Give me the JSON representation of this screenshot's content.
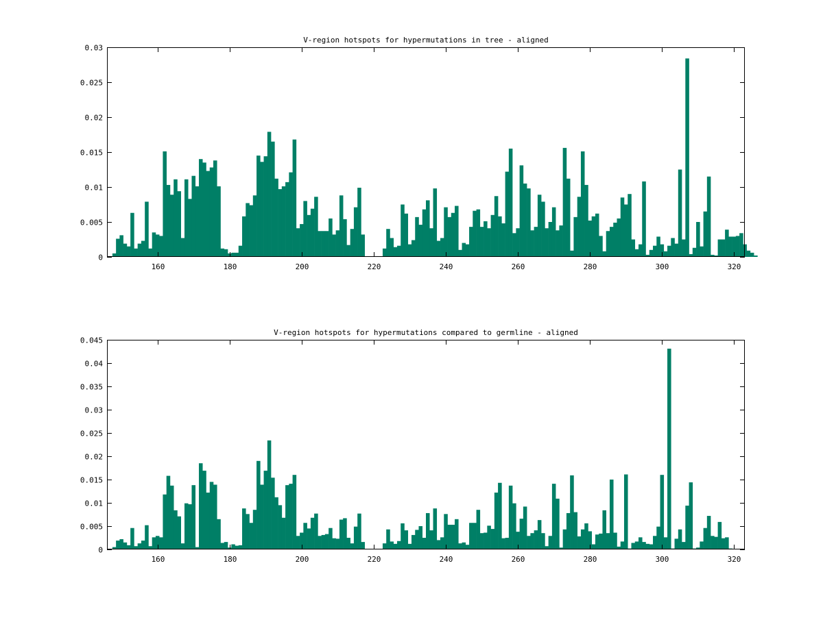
{
  "colors": {
    "bar": "#007f66",
    "axis": "#000000",
    "background": "#ffffff"
  },
  "chart_data": [
    {
      "type": "bar",
      "title": "V-region hotspots for hypermutations in tree - aligned",
      "xlabel": "",
      "ylabel": "",
      "xlim": [
        146,
        323
      ],
      "ylim": [
        0,
        0.03
      ],
      "xticks": [
        160,
        180,
        200,
        220,
        240,
        260,
        280,
        300,
        320
      ],
      "yticks": [
        0,
        0.005,
        0.01,
        0.015,
        0.02,
        0.025,
        0.03
      ],
      "ytick_labels": [
        "0",
        "0.005",
        "0.01",
        "0.015",
        "0.02",
        "0.025",
        "0.03"
      ],
      "x_start": 148,
      "values": [
        0.0005,
        0.0026,
        0.0031,
        0.0019,
        0.0015,
        0.0063,
        0.0012,
        0.0019,
        0.0023,
        0.0079,
        0.0012,
        0.0035,
        0.0032,
        0.003,
        0.0151,
        0.0103,
        0.0089,
        0.0111,
        0.0094,
        0.0027,
        0.0111,
        0.0083,
        0.0116,
        0.0101,
        0.014,
        0.0135,
        0.0123,
        0.0128,
        0.0138,
        0.0101,
        0.0012,
        0.0011,
        0.0005,
        0.0006,
        0.0006,
        0.0016,
        0.0058,
        0.0077,
        0.0074,
        0.0088,
        0.0145,
        0.0136,
        0.0144,
        0.0179,
        0.0165,
        0.0112,
        0.0097,
        0.0101,
        0.0107,
        0.0121,
        0.0168,
        0.0041,
        0.0047,
        0.008,
        0.006,
        0.0069,
        0.0086,
        0.0037,
        0.0037,
        0.0037,
        0.0055,
        0.0032,
        0.0038,
        0.0088,
        0.0054,
        0.0017,
        0.004,
        0.0071,
        0.0099,
        0.0032,
        0,
        0,
        0,
        0,
        0,
        0.0012,
        0.004,
        0.0027,
        0.0014,
        0.0016,
        0.0075,
        0.0062,
        0.0018,
        0.0024,
        0.0057,
        0.0046,
        0.0068,
        0.0081,
        0.0041,
        0.0098,
        0.0023,
        0.0027,
        0.0071,
        0.0057,
        0.0063,
        0.0073,
        0.001,
        0.002,
        0.0018,
        0.0043,
        0.0066,
        0.0068,
        0.0043,
        0.0051,
        0.0041,
        0.006,
        0.0087,
        0.0058,
        0.0048,
        0.0122,
        0.0155,
        0.0034,
        0.0041,
        0.0131,
        0.0105,
        0.0098,
        0.0038,
        0.0043,
        0.0089,
        0.0079,
        0.0041,
        0.005,
        0.0071,
        0.0038,
        0.0045,
        0.0156,
        0.0112,
        0.0009,
        0.0057,
        0.0086,
        0.0151,
        0.0103,
        0.0052,
        0.0058,
        0.0062,
        0.003,
        0.0008,
        0.0037,
        0.0043,
        0.0049,
        0.0055,
        0.0085,
        0.0075,
        0.009,
        0.0025,
        0.0011,
        0.0018,
        0.0108,
        0.0003,
        0.001,
        0.0016,
        0.0029,
        0.0018,
        0.0008,
        0.0016,
        0.0027,
        0.0019,
        0.0125,
        0.0025,
        0.0284,
        0.0004,
        0.0013,
        0.005,
        0.0015,
        0.0065,
        0.0115,
        0.0003,
        0.0002,
        0.0025,
        0.0025,
        0.0039,
        0.0029,
        0.0029,
        0.003,
        0.0034,
        0.0018,
        0.0009,
        0.0006,
        0.0002
      ]
    },
    {
      "type": "bar",
      "title": "V-region hotspots for hypermutations compared to germline - aligned",
      "xlabel": "",
      "ylabel": "",
      "xlim": [
        146,
        323
      ],
      "ylim": [
        0,
        0.045
      ],
      "xticks": [
        160,
        180,
        200,
        220,
        240,
        260,
        280,
        300,
        320
      ],
      "yticks": [
        0,
        0.005,
        0.01,
        0.015,
        0.02,
        0.025,
        0.03,
        0.035,
        0.04,
        0.045
      ],
      "ytick_labels": [
        "0",
        "0.005",
        "0.01",
        "0.015",
        "0.02",
        "0.025",
        "0.03",
        "0.035",
        "0.04",
        "0.045"
      ],
      "x_start": 148,
      "values": [
        0.0005,
        0.0019,
        0.0022,
        0.0015,
        0.0009,
        0.0046,
        0.0007,
        0.0013,
        0.0019,
        0.0052,
        0.0007,
        0.0026,
        0.0029,
        0.0026,
        0.0118,
        0.0158,
        0.0137,
        0.0084,
        0.0071,
        0.0013,
        0.0099,
        0.0097,
        0.0138,
        0.0005,
        0.0185,
        0.0169,
        0.0122,
        0.0145,
        0.0139,
        0.0065,
        0.0014,
        0.0016,
        0.0004,
        0.0011,
        0.0008,
        0.0009,
        0.0088,
        0.0076,
        0.0057,
        0.0085,
        0.019,
        0.0139,
        0.0169,
        0.0234,
        0.0154,
        0.0112,
        0.0095,
        0.0068,
        0.0138,
        0.0141,
        0.016,
        0.0029,
        0.0036,
        0.0057,
        0.0045,
        0.0068,
        0.0077,
        0.0029,
        0.0031,
        0.0033,
        0.0046,
        0.0024,
        0.0023,
        0.0064,
        0.0067,
        0.0025,
        0.0013,
        0.0049,
        0.0077,
        0.0016,
        0,
        0,
        0,
        0,
        0,
        0.0013,
        0.0043,
        0.0017,
        0.0012,
        0.0018,
        0.0056,
        0.0041,
        0.0012,
        0.0031,
        0.0042,
        0.005,
        0.0025,
        0.0078,
        0.0041,
        0.0088,
        0.002,
        0.0026,
        0.0076,
        0.0053,
        0.0053,
        0.0065,
        0.0013,
        0.0015,
        0.001,
        0.0057,
        0.0057,
        0.0085,
        0.0035,
        0.0036,
        0.0051,
        0.0044,
        0.0122,
        0.0143,
        0.0024,
        0.0025,
        0.0137,
        0.0099,
        0.0038,
        0.0066,
        0.0092,
        0.0029,
        0.0035,
        0.0041,
        0.0063,
        0.0035,
        0.0007,
        0.0029,
        0.0141,
        0.0109,
        0.0004,
        0.0043,
        0.0078,
        0.0159,
        0.008,
        0.0028,
        0.0043,
        0.0056,
        0.0039,
        0.0011,
        0.0032,
        0.0034,
        0.0084,
        0.0035,
        0.015,
        0.0036,
        0.0006,
        0.0017,
        0.0161,
        0.0002,
        0.0014,
        0.0017,
        0.0026,
        0.0016,
        0.0012,
        0.0011,
        0.0029,
        0.0049,
        0.016,
        0.0026,
        0.0431,
        0.0002,
        0.0023,
        0.0043,
        0.0016,
        0.0094,
        0.0144,
        0.0002,
        0.0004,
        0.0017,
        0.0046,
        0.0072,
        0.0029,
        0.0027,
        0.0059,
        0.0024,
        0.0026,
        0.0002,
        0.0001,
        0.0001
      ]
    }
  ]
}
